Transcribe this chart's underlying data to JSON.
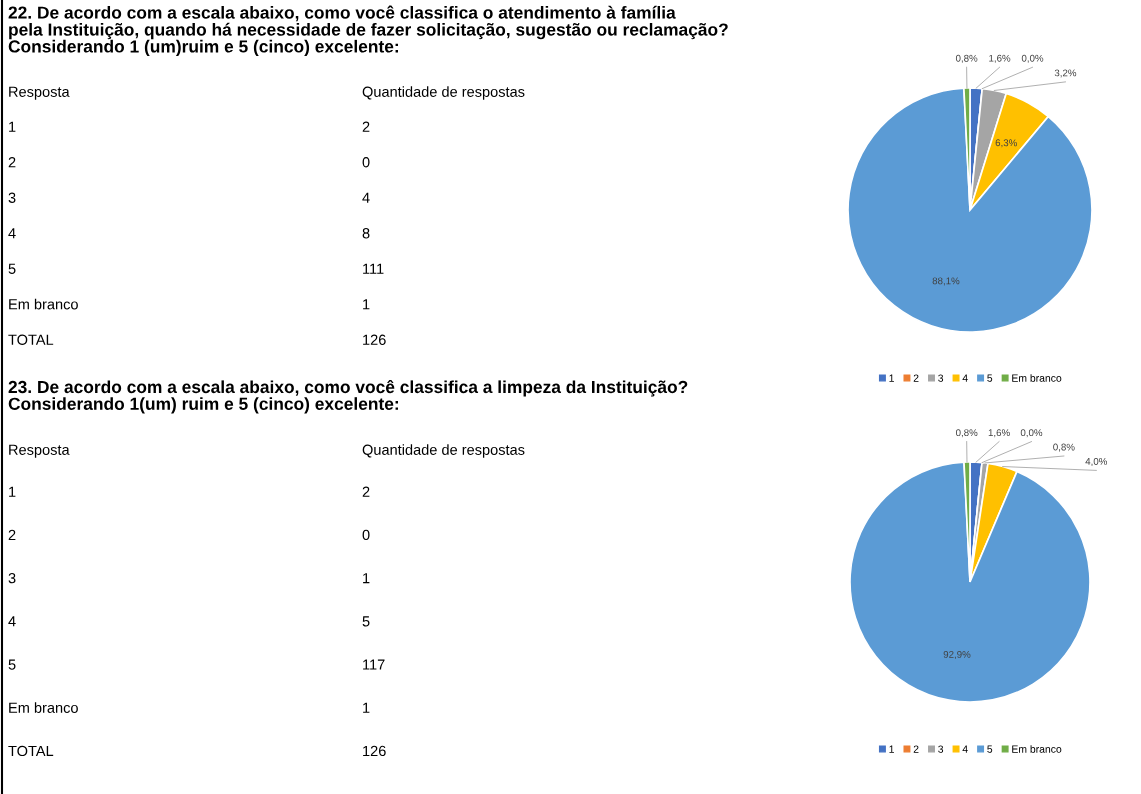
{
  "chart_data": [
    {
      "type": "pie",
      "title": "22. De acordo com a escala abaixo, como você classifica o atendimento à família\npela Instituição, quando há necessidade de fazer solicitação, sugestão ou reclamação?\nConsiderando 1 (um)ruim e 5 (cinco) excelente:",
      "categories": [
        "1",
        "2",
        "3",
        "4",
        "5",
        "Em branco"
      ],
      "values": [
        1.6,
        0.0,
        3.2,
        6.3,
        88.1,
        0.8
      ],
      "value_labels": [
        "1,6%",
        "0,0%",
        "3,2%",
        "6,3%",
        "88,1%",
        "0,8%"
      ],
      "colors": [
        "#4472c4",
        "#ed7d31",
        "#a5a5a5",
        "#ffc000",
        "#5b9bd5",
        "#70ad47"
      ],
      "legend": "bottom",
      "annotations": [
        "Resposta",
        "Quantidade de respostas",
        "2",
        "0",
        "4",
        "8",
        "111",
        "1",
        "TOTAL",
        "126"
      ]
    },
    {
      "type": "pie",
      "title": "23. De acordo com a escala abaixo, como você classifica a limpeza da Instituição?\nConsiderando 1(um) ruim e 5 (cinco) excelente:",
      "categories": [
        "1",
        "2",
        "3",
        "4",
        "5",
        "Em branco"
      ],
      "values": [
        1.6,
        0.0,
        0.8,
        4.0,
        92.9,
        0.8
      ],
      "value_labels": [
        "1,6%",
        "0,0%",
        "0,8%",
        "4,0%",
        "92,9%",
        "0,8%"
      ],
      "colors": [
        "#4472c4",
        "#ed7d31",
        "#a5a5a5",
        "#ffc000",
        "#5b9bd5",
        "#70ad47"
      ],
      "legend": "bottom",
      "annotations": [
        "Resposta",
        "Quantidade de respostas",
        "2",
        "0",
        "1",
        "5",
        "117",
        "1",
        "TOTAL",
        "126"
      ]
    }
  ]
}
